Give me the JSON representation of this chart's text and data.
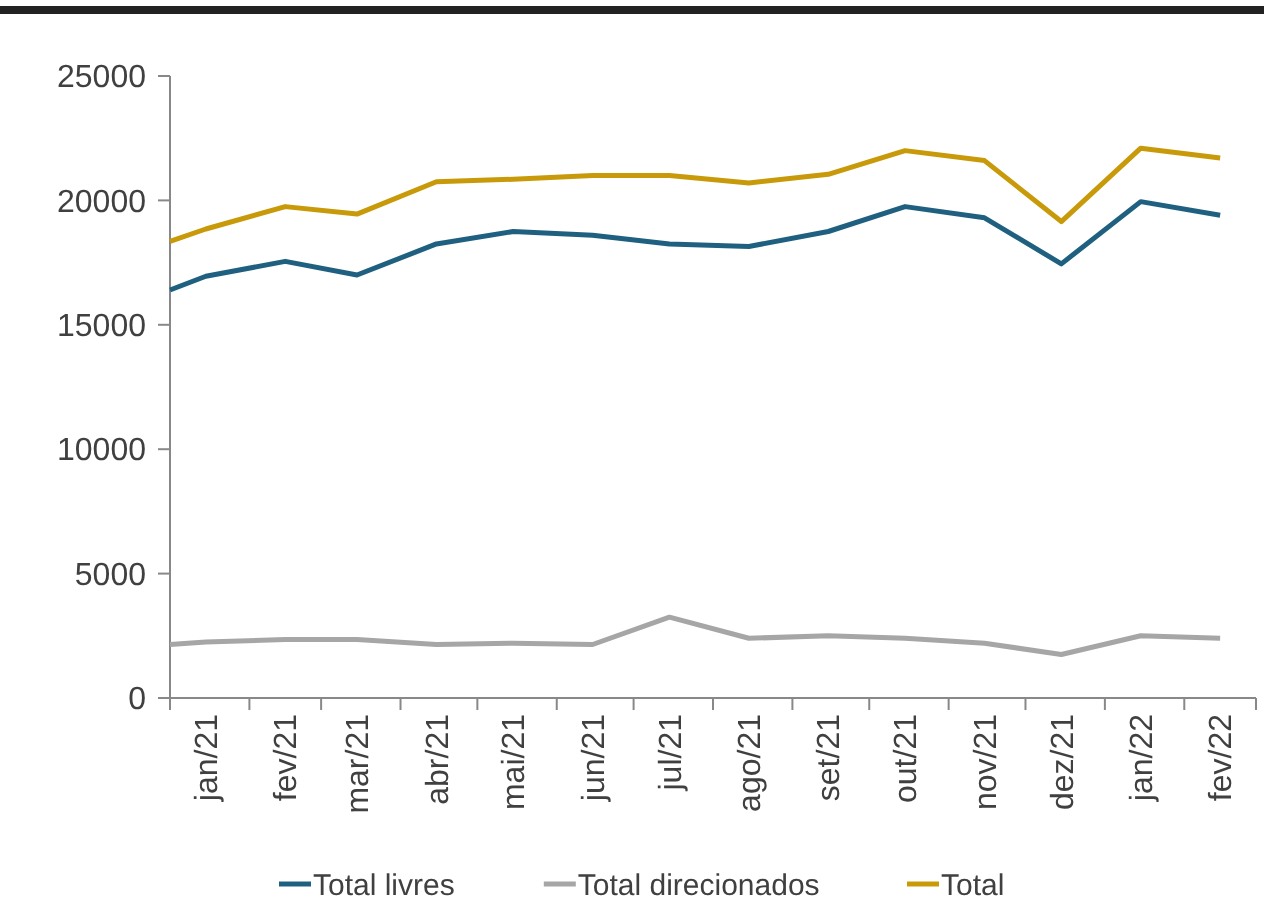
{
  "chart_data": {
    "type": "line",
    "x": [
      "2021-01-01",
      "2021-01-15",
      "2021-02-15",
      "2021-03-15",
      "2021-04-15",
      "2021-05-15",
      "2021-06-15",
      "2021-07-15",
      "2021-08-15",
      "2021-09-15",
      "2021-10-15",
      "2021-11-15",
      "2021-12-15",
      "2022-01-15",
      "2022-02-15"
    ],
    "xlim": [
      "2021-01-01",
      "2022-03-01"
    ],
    "xticks": [
      {
        "value": "2021-01-01",
        "label": null
      },
      {
        "value": "2021-01-15",
        "label": "jan/21"
      },
      {
        "value": "2021-02-01",
        "label": null
      },
      {
        "value": "2021-02-15",
        "label": "fev/21"
      },
      {
        "value": "2021-03-01",
        "label": null
      },
      {
        "value": "2021-03-15",
        "label": "mar/21"
      },
      {
        "value": "2021-04-01",
        "label": null
      },
      {
        "value": "2021-04-15",
        "label": "abr/21"
      },
      {
        "value": "2021-05-01",
        "label": null
      },
      {
        "value": "2021-05-15",
        "label": "mai/21"
      },
      {
        "value": "2021-06-01",
        "label": null
      },
      {
        "value": "2021-06-15",
        "label": "jun/21"
      },
      {
        "value": "2021-07-01",
        "label": null
      },
      {
        "value": "2021-07-15",
        "label": "jul/21"
      },
      {
        "value": "2021-08-01",
        "label": null
      },
      {
        "value": "2021-08-15",
        "label": "ago/21"
      },
      {
        "value": "2021-09-01",
        "label": null
      },
      {
        "value": "2021-09-15",
        "label": "set/21"
      },
      {
        "value": "2021-10-01",
        "label": null
      },
      {
        "value": "2021-10-15",
        "label": "out/21"
      },
      {
        "value": "2021-11-01",
        "label": null
      },
      {
        "value": "2021-11-15",
        "label": "nov/21"
      },
      {
        "value": "2021-12-01",
        "label": null
      },
      {
        "value": "2021-12-15",
        "label": "dez/21"
      },
      {
        "value": "2022-01-01",
        "label": null
      },
      {
        "value": "2022-01-15",
        "label": "jan/22"
      },
      {
        "value": "2022-02-01",
        "label": null
      },
      {
        "value": "2022-02-15",
        "label": "fev/22"
      },
      {
        "value": "2022-03-01",
        "label": null
      }
    ],
    "ylim": [
      0,
      25000
    ],
    "yticks": [
      0,
      5000,
      10000,
      15000,
      20000,
      25000
    ],
    "grid": false,
    "legend": "bottom",
    "marker": "none",
    "line_style": "solid",
    "series": [
      {
        "name": "Total livres",
        "color": "#1f6080",
        "values": [
          16400,
          16950,
          17550,
          17000,
          18250,
          18750,
          18600,
          18250,
          18150,
          18750,
          19750,
          19300,
          17450,
          19950,
          19400
        ]
      },
      {
        "name": "Total direcionados",
        "color": "#a6a6a6",
        "values": [
          2150,
          2250,
          2350,
          2350,
          2150,
          2200,
          2150,
          3250,
          2400,
          2500,
          2400,
          2200,
          1750,
          2500,
          2400
        ]
      },
      {
        "name": "Total",
        "color": "#c89a0a",
        "values": [
          18350,
          18850,
          19750,
          19450,
          20750,
          20850,
          21000,
          21000,
          20700,
          21050,
          22000,
          21600,
          19150,
          22100,
          21700
        ]
      }
    ]
  }
}
